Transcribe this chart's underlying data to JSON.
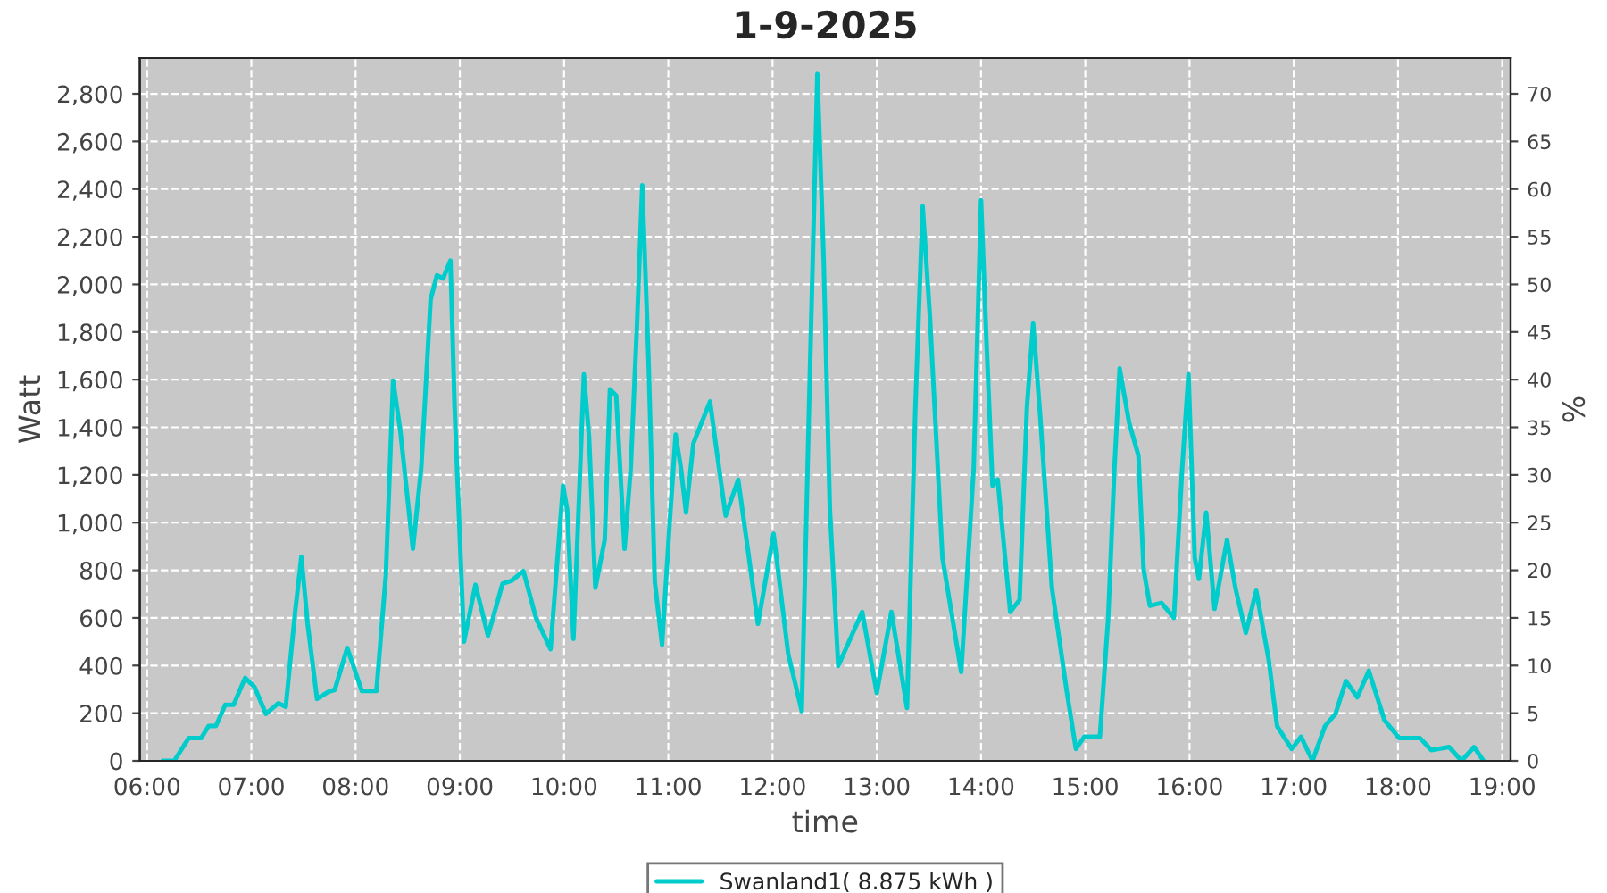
{
  "chart_data": {
    "type": "line",
    "title": "1-9-2025",
    "xlabel": "time",
    "ylabel": "Watt",
    "y2label": "%",
    "x": [
      6.15,
      6.26,
      6.4,
      6.52,
      6.59,
      6.66,
      6.75,
      6.83,
      6.94,
      7.03,
      7.14,
      7.26,
      7.33,
      7.42,
      7.48,
      7.54,
      7.63,
      7.74,
      7.8,
      7.92,
      8.06,
      8.2,
      8.29,
      8.36,
      8.43,
      8.55,
      8.63,
      8.72,
      8.78,
      8.84,
      8.91,
      8.95,
      9.04,
      9.15,
      9.27,
      9.41,
      9.5,
      9.61,
      9.73,
      9.87,
      9.99,
      10.03,
      10.09,
      10.19,
      10.24,
      10.3,
      10.39,
      10.44,
      10.5,
      10.58,
      10.64,
      10.7,
      10.75,
      10.81,
      10.87,
      10.94,
      11.01,
      11.07,
      11.12,
      11.17,
      11.24,
      11.32,
      11.4,
      11.47,
      11.55,
      11.67,
      11.75,
      11.86,
      12.01,
      12.15,
      12.28,
      12.35,
      12.43,
      12.49,
      12.55,
      12.63,
      12.86,
      13.0,
      13.14,
      13.29,
      13.37,
      13.44,
      13.51,
      13.63,
      13.81,
      13.93,
      14.0,
      14.05,
      14.11,
      14.16,
      14.28,
      14.37,
      14.44,
      14.5,
      14.57,
      14.68,
      14.82,
      14.91,
      14.99,
      15.14,
      15.22,
      15.28,
      15.33,
      15.42,
      15.51,
      15.56,
      15.62,
      15.73,
      15.85,
      15.93,
      15.99,
      16.05,
      16.09,
      16.16,
      16.24,
      16.36,
      16.44,
      16.54,
      16.64,
      16.76,
      16.84,
      16.98,
      17.07,
      17.18,
      17.3,
      17.4,
      17.5,
      17.61,
      17.72,
      17.87,
      18.01,
      18.21,
      18.32,
      18.49,
      18.61,
      18.73,
      18.82
    ],
    "series": [
      {
        "name": "Swanland1( 8.875 kWh )",
        "color": "#00cccc",
        "values": [
          0,
          0,
          96,
          96,
          146,
          146,
          235,
          235,
          348,
          310,
          197,
          242,
          227,
          625,
          857,
          575,
          260,
          290,
          298,
          474,
          293,
          293,
          777,
          1596,
          1382,
          890,
          1230,
          1937,
          2038,
          2025,
          2100,
          1483,
          500,
          739,
          525,
          744,
          757,
          797,
          600,
          469,
          1155,
          1054,
          512,
          1622,
          1357,
          726,
          928,
          1559,
          1533,
          890,
          1231,
          1836,
          2416,
          1685,
          752,
          487,
          979,
          1369,
          1231,
          1042,
          1332,
          1420,
          1508,
          1281,
          1029,
          1180,
          928,
          575,
          953,
          449,
          209,
          1483,
          2883,
          2113,
          1054,
          398,
          625,
          285,
          625,
          222,
          1483,
          2328,
          1861,
          852,
          373,
          1231,
          2353,
          1786,
          1155,
          1180,
          625,
          676,
          1483,
          1836,
          1432,
          726,
          298,
          50,
          101,
          101,
          600,
          1231,
          1647,
          1420,
          1281,
          802,
          651,
          663,
          600,
          1231,
          1622,
          852,
          764,
          1042,
          638,
          928,
          726,
          537,
          714,
          424,
          146,
          50,
          101,
          0,
          146,
          197,
          335,
          267,
          378,
          171,
          96,
          96,
          45,
          58,
          0,
          58,
          0
        ]
      }
    ],
    "xlim": [
      5.93,
      19.08
    ],
    "xticks": [
      {
        "value": 6,
        "label": "06:00"
      },
      {
        "value": 7,
        "label": "07:00"
      },
      {
        "value": 8,
        "label": "08:00"
      },
      {
        "value": 9,
        "label": "09:00"
      },
      {
        "value": 10,
        "label": "10:00"
      },
      {
        "value": 11,
        "label": "11:00"
      },
      {
        "value": 12,
        "label": "12:00"
      },
      {
        "value": 13,
        "label": "13:00"
      },
      {
        "value": 14,
        "label": "14:00"
      },
      {
        "value": 15,
        "label": "15:00"
      },
      {
        "value": 16,
        "label": "16:00"
      },
      {
        "value": 17,
        "label": "17:00"
      },
      {
        "value": 18,
        "label": "18:00"
      },
      {
        "value": 19,
        "label": "19:00"
      }
    ],
    "ylim": [
      0,
      2950
    ],
    "yticks": [
      0,
      200,
      400,
      600,
      800,
      {
        "value": 1000,
        "label": "1,000"
      },
      {
        "value": 1200,
        "label": "1,200"
      },
      {
        "value": 1400,
        "label": "1,400"
      },
      {
        "value": 1600,
        "label": "1,600"
      },
      {
        "value": 1800,
        "label": "1,800"
      },
      {
        "value": 2000,
        "label": "2,000"
      },
      {
        "value": 2200,
        "label": "2,200"
      },
      {
        "value": 2400,
        "label": "2,400"
      },
      {
        "value": 2600,
        "label": "2,600"
      },
      {
        "value": 2800,
        "label": "2,800"
      }
    ],
    "y2lim": [
      0,
      73.75
    ],
    "y2ticks": [
      0,
      5,
      10,
      15,
      20,
      25,
      30,
      35,
      40,
      45,
      50,
      55,
      60,
      65,
      70
    ],
    "grid": true,
    "legend": "bottom",
    "marker": "none",
    "line_style": "solid"
  }
}
